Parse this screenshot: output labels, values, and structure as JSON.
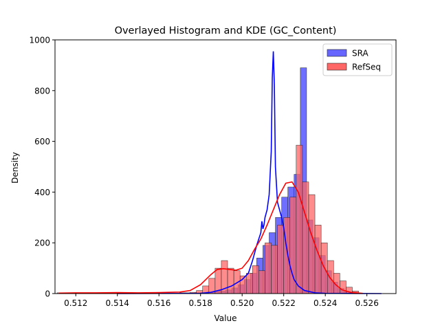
{
  "chart_data": {
    "type": "histogram",
    "title": "Overlayed Histogram and KDE (GC_Content)",
    "xlabel": "Value",
    "ylabel": "Density",
    "xlim": [
      0.511,
      0.5274
    ],
    "ylim": [
      0,
      1000
    ],
    "xticks": [
      0.512,
      0.514,
      0.516,
      0.518,
      0.52,
      0.522,
      0.524,
      0.526
    ],
    "xtick_labels": [
      "0.512",
      "0.514",
      "0.516",
      "0.518",
      "0.520",
      "0.522",
      "0.524",
      "0.526"
    ],
    "yticks": [
      0,
      200,
      400,
      600,
      800,
      1000
    ],
    "ytick_labels": [
      "0",
      "200",
      "400",
      "600",
      "800",
      "1000"
    ],
    "grid": false,
    "legend_position": "top-right",
    "series": [
      {
        "name": "SRA",
        "color": "#0000ff",
        "bar_fill": "#6666ff",
        "bars": [
          [
            0.5177,
            0.518,
            3
          ],
          [
            0.518,
            0.5183,
            4
          ],
          [
            0.5183,
            0.5186,
            6
          ],
          [
            0.5186,
            0.5189,
            8
          ],
          [
            0.5189,
            0.5192,
            10
          ],
          [
            0.5192,
            0.5195,
            14
          ],
          [
            0.5195,
            0.5198,
            22
          ],
          [
            0.5198,
            0.5201,
            35
          ],
          [
            0.5201,
            0.5204,
            55
          ],
          [
            0.5204,
            0.5207,
            80
          ],
          [
            0.5207,
            0.521,
            140
          ],
          [
            0.521,
            0.5213,
            190
          ],
          [
            0.5213,
            0.5216,
            240
          ],
          [
            0.5216,
            0.5219,
            300
          ],
          [
            0.5219,
            0.5222,
            380
          ],
          [
            0.5222,
            0.5225,
            420
          ],
          [
            0.5225,
            0.5228,
            470
          ],
          [
            0.5228,
            0.5231,
            890
          ],
          [
            0.5231,
            0.5234,
            290
          ],
          [
            0.5234,
            0.5237,
            220
          ],
          [
            0.5237,
            0.524,
            150
          ],
          [
            0.524,
            0.5243,
            90
          ],
          [
            0.5243,
            0.5246,
            45
          ],
          [
            0.5246,
            0.5249,
            20
          ],
          [
            0.5249,
            0.5252,
            8
          ],
          [
            0.5252,
            0.5255,
            3
          ]
        ],
        "kde": [
          [
            0.514,
            0
          ],
          [
            0.518,
            1
          ],
          [
            0.5185,
            5
          ],
          [
            0.519,
            15
          ],
          [
            0.5195,
            30
          ],
          [
            0.52,
            55
          ],
          [
            0.5203,
            80
          ],
          [
            0.5205,
            130
          ],
          [
            0.5207,
            190
          ],
          [
            0.5209,
            240
          ],
          [
            0.52095,
            285
          ],
          [
            0.521,
            255
          ],
          [
            0.52105,
            270
          ],
          [
            0.5211,
            300
          ],
          [
            0.5212,
            330
          ],
          [
            0.5213,
            390
          ],
          [
            0.5214,
            560
          ],
          [
            0.52145,
            850
          ],
          [
            0.5215,
            955
          ],
          [
            0.52155,
            820
          ],
          [
            0.5216,
            500
          ],
          [
            0.5217,
            360
          ],
          [
            0.5218,
            330
          ],
          [
            0.5219,
            300
          ],
          [
            0.522,
            260
          ],
          [
            0.5221,
            200
          ],
          [
            0.5222,
            150
          ],
          [
            0.5223,
            110
          ],
          [
            0.5224,
            80
          ],
          [
            0.5225,
            55
          ],
          [
            0.5227,
            30
          ],
          [
            0.523,
            12
          ],
          [
            0.5235,
            3
          ],
          [
            0.524,
            1
          ],
          [
            0.5267,
            0
          ]
        ]
      },
      {
        "name": "RefSeq",
        "color": "#ff0000",
        "bar_fill": "#ff6666",
        "bars": [
          [
            0.5111,
            0.5119,
            3
          ],
          [
            0.513,
            0.5138,
            3
          ],
          [
            0.514,
            0.5148,
            2
          ],
          [
            0.5155,
            0.5163,
            3
          ],
          [
            0.517,
            0.5175,
            3
          ],
          [
            0.5175,
            0.5178,
            5
          ],
          [
            0.5178,
            0.5181,
            12
          ],
          [
            0.5181,
            0.5184,
            30
          ],
          [
            0.5184,
            0.5187,
            60
          ],
          [
            0.5187,
            0.519,
            100
          ],
          [
            0.519,
            0.5193,
            130
          ],
          [
            0.5193,
            0.5196,
            100
          ],
          [
            0.5196,
            0.5199,
            90
          ],
          [
            0.5199,
            0.5202,
            70
          ],
          [
            0.5202,
            0.5205,
            80
          ],
          [
            0.5205,
            0.5208,
            110
          ],
          [
            0.5208,
            0.5211,
            90
          ],
          [
            0.5211,
            0.5214,
            200
          ],
          [
            0.5214,
            0.5217,
            190
          ],
          [
            0.5217,
            0.522,
            270
          ],
          [
            0.522,
            0.5223,
            300
          ],
          [
            0.5223,
            0.5226,
            380
          ],
          [
            0.5226,
            0.5229,
            585
          ],
          [
            0.5229,
            0.5232,
            440
          ],
          [
            0.5232,
            0.5235,
            390
          ],
          [
            0.5235,
            0.5238,
            270
          ],
          [
            0.5238,
            0.5241,
            200
          ],
          [
            0.5241,
            0.5244,
            130
          ],
          [
            0.5244,
            0.5247,
            80
          ],
          [
            0.5247,
            0.525,
            50
          ],
          [
            0.525,
            0.5253,
            25
          ],
          [
            0.5253,
            0.5256,
            10
          ]
        ],
        "kde": [
          [
            0.5112,
            2
          ],
          [
            0.512,
            3
          ],
          [
            0.513,
            3
          ],
          [
            0.514,
            4
          ],
          [
            0.515,
            3
          ],
          [
            0.516,
            4
          ],
          [
            0.517,
            6
          ],
          [
            0.5175,
            12
          ],
          [
            0.518,
            35
          ],
          [
            0.5185,
            75
          ],
          [
            0.5188,
            95
          ],
          [
            0.5191,
            98
          ],
          [
            0.5194,
            95
          ],
          [
            0.5197,
            92
          ],
          [
            0.52,
            100
          ],
          [
            0.5203,
            130
          ],
          [
            0.5206,
            175
          ],
          [
            0.5209,
            215
          ],
          [
            0.5212,
            270
          ],
          [
            0.5215,
            330
          ],
          [
            0.5218,
            390
          ],
          [
            0.5221,
            435
          ],
          [
            0.5224,
            440
          ],
          [
            0.5227,
            400
          ],
          [
            0.523,
            320
          ],
          [
            0.5233,
            240
          ],
          [
            0.5236,
            170
          ],
          [
            0.5239,
            110
          ],
          [
            0.5242,
            65
          ],
          [
            0.5245,
            35
          ],
          [
            0.5248,
            15
          ],
          [
            0.5252,
            5
          ],
          [
            0.5258,
            1
          ]
        ]
      }
    ]
  }
}
